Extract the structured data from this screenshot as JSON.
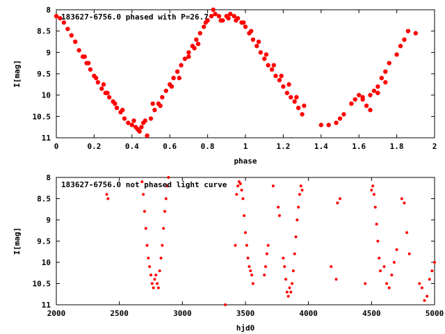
{
  "chart_data": [
    {
      "type": "scatter",
      "title": "183627-6756.0 phased with P=26.7",
      "xlabel": "phase",
      "ylabel": "I[mag]",
      "xlim": [
        0,
        2
      ],
      "ylim": [
        8,
        11
      ],
      "y_inverted": true,
      "x_ticks": [
        "0",
        "0.2",
        "0.4",
        "0.6",
        "0.8",
        "1",
        "1.2",
        "1.4",
        "1.6",
        "1.8",
        "2"
      ],
      "y_ticks": [
        "8",
        "8.5",
        "9",
        "9.5",
        "10",
        "10.5",
        "11"
      ],
      "color": "#ff0000",
      "grid": false,
      "series": [
        {
          "x": [
            0.0,
            0.02,
            0.04,
            0.06,
            0.08,
            0.1,
            0.12,
            0.14,
            0.16,
            0.18,
            0.2,
            0.22,
            0.24,
            0.26,
            0.28,
            0.3,
            0.32,
            0.34,
            0.36,
            0.38,
            0.4,
            0.42,
            0.44,
            0.46,
            0.48,
            0.5,
            0.52,
            0.54,
            0.56,
            0.58,
            0.6,
            0.62,
            0.64,
            0.66,
            0.68,
            0.7,
            0.72,
            0.74,
            0.76,
            0.78,
            0.8,
            0.82,
            0.84,
            0.86,
            0.88,
            0.9,
            0.92,
            0.94,
            0.96,
            0.98,
            1.0,
            1.02,
            1.04,
            1.06,
            1.08,
            1.1,
            1.12,
            1.14,
            1.16,
            1.18,
            1.2,
            1.22,
            1.24,
            1.26,
            1.28,
            1.3,
            1.4,
            1.44,
            1.48,
            1.5,
            1.52,
            1.56,
            1.58,
            1.6,
            1.62,
            1.64,
            1.66,
            1.68,
            1.7,
            1.72,
            1.74,
            1.76,
            1.8,
            1.82,
            1.84,
            1.86,
            1.9,
            0.15,
            0.17,
            0.21,
            0.25,
            0.27,
            0.31,
            0.35,
            0.41,
            0.43,
            0.45,
            0.47,
            0.51,
            0.55,
            0.61,
            0.65,
            0.7,
            0.73,
            0.75,
            0.79,
            0.83,
            0.87,
            0.91,
            0.95,
            0.99,
            1.03,
            1.07,
            1.11,
            1.15,
            1.19,
            1.23,
            1.27,
            1.31,
            1.62,
            1.66,
            1.7,
            1.74
          ],
          "y": [
            8.15,
            8.2,
            8.3,
            8.45,
            8.6,
            8.75,
            8.95,
            9.1,
            9.25,
            9.4,
            9.55,
            9.7,
            9.85,
            9.95,
            10.05,
            10.15,
            10.3,
            10.4,
            10.55,
            10.65,
            10.7,
            10.75,
            10.85,
            10.65,
            10.95,
            10.55,
            10.35,
            10.2,
            10.05,
            9.9,
            9.75,
            9.6,
            9.45,
            9.3,
            9.15,
            9.0,
            8.85,
            8.7,
            8.55,
            8.4,
            8.25,
            8.15,
            8.1,
            8.15,
            8.25,
            8.15,
            8.1,
            8.15,
            8.2,
            8.3,
            8.4,
            8.55,
            8.7,
            8.85,
            9.0,
            9.15,
            9.3,
            9.4,
            9.55,
            9.65,
            9.8,
            9.95,
            10.05,
            10.15,
            10.3,
            10.45,
            10.7,
            10.7,
            10.65,
            10.55,
            10.45,
            10.2,
            10.1,
            10.0,
            10.05,
            10.25,
            10.0,
            9.9,
            9.8,
            9.6,
            9.45,
            9.25,
            9.05,
            8.85,
            8.7,
            8.5,
            8.55,
            9.1,
            9.25,
            9.6,
            9.75,
            9.95,
            10.2,
            10.35,
            10.6,
            10.8,
            10.75,
            10.6,
            10.2,
            10.25,
            9.8,
            9.6,
            9.1,
            8.9,
            8.8,
            8.3,
            8.0,
            8.25,
            8.2,
            8.25,
            8.3,
            8.5,
            8.75,
            9.05,
            9.3,
            9.55,
            9.75,
            10.05,
            10.25,
            10.1,
            10.35,
            9.95,
            9.7
          ]
        }
      ]
    },
    {
      "type": "scatter",
      "title": "183627-6756.0 not phased light curve",
      "xlabel": "hjd0",
      "ylabel": "I[mag]",
      "xlim": [
        2000,
        5000
      ],
      "ylim": [
        8,
        11
      ],
      "y_inverted": true,
      "x_ticks": [
        "2000",
        "2500",
        "3000",
        "3500",
        "4000",
        "4500",
        "5000"
      ],
      "y_ticks": [
        "8",
        "8.5",
        "9",
        "9.5",
        "10",
        "10.5",
        "11"
      ],
      "color": "#ff0000",
      "grid": false,
      "series": [
        {
          "x": [
            2400,
            2410,
            2680,
            2690,
            2700,
            2710,
            2720,
            2730,
            2740,
            2750,
            2760,
            2770,
            2780,
            2790,
            2800,
            2810,
            2820,
            2830,
            2840,
            2850,
            2860,
            2870,
            2880,
            2890,
            3340,
            3420,
            3430,
            3440,
            3450,
            3460,
            3470,
            3480,
            3490,
            3500,
            3510,
            3520,
            3530,
            3540,
            3550,
            3560,
            3650,
            3660,
            3670,
            3680,
            3720,
            3760,
            3770,
            3800,
            3810,
            3820,
            3830,
            3840,
            3850,
            3860,
            3870,
            3880,
            3890,
            3900,
            3910,
            3920,
            3930,
            3940,
            3950,
            4180,
            4220,
            4230,
            4250,
            4450,
            4500,
            4510,
            4520,
            4530,
            4540,
            4550,
            4560,
            4570,
            4600,
            4620,
            4640,
            4660,
            4680,
            4700,
            4740,
            4760,
            4780,
            4800,
            4880,
            4900,
            4920,
            4940,
            4960,
            4980,
            5000
          ],
          "y": [
            8.4,
            8.5,
            8.1,
            8.4,
            8.8,
            9.2,
            9.6,
            9.9,
            10.1,
            10.3,
            10.5,
            10.6,
            10.4,
            10.3,
            10.5,
            10.6,
            10.2,
            9.9,
            9.6,
            9.2,
            8.8,
            8.5,
            8.2,
            8.0,
            11.0,
            9.6,
            8.4,
            8.2,
            8.1,
            8.15,
            8.3,
            8.5,
            8.9,
            9.3,
            9.6,
            9.9,
            10.1,
            10.2,
            10.3,
            10.5,
            10.3,
            10.1,
            9.8,
            9.6,
            8.2,
            8.7,
            8.9,
            9.9,
            10.1,
            10.4,
            10.7,
            10.8,
            10.6,
            10.7,
            10.5,
            10.2,
            9.8,
            9.4,
            9.0,
            8.7,
            8.4,
            8.2,
            8.3,
            10.1,
            10.4,
            8.6,
            8.5,
            10.5,
            8.3,
            8.2,
            8.4,
            8.7,
            9.1,
            9.5,
            9.9,
            10.2,
            10.1,
            10.5,
            10.6,
            10.3,
            10.0,
            9.7,
            8.5,
            8.6,
            9.3,
            9.8,
            10.5,
            10.6,
            10.9,
            10.8,
            10.4,
            10.2,
            10.0
          ]
        }
      ]
    }
  ]
}
